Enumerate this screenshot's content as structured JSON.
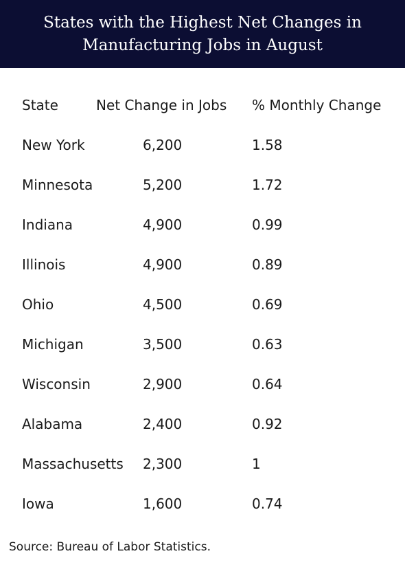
{
  "chart_data": {
    "type": "table",
    "title": "States with the Highest Net Changes in Manufacturing Jobs in August",
    "columns": [
      "State",
      "Net Change in Jobs",
      "% Monthly Change"
    ],
    "rows": [
      [
        "New York",
        "6,200",
        "1.58"
      ],
      [
        "Minnesota",
        "5,200",
        "1.72"
      ],
      [
        "Indiana",
        "4,900",
        "0.99"
      ],
      [
        "Illinois",
        "4,900",
        "0.89"
      ],
      [
        "Ohio",
        "4,500",
        "0.69"
      ],
      [
        "Michigan",
        "3,500",
        "0.63"
      ],
      [
        "Wisconsin",
        "2,900",
        "0.64"
      ],
      [
        "Alabama",
        "2,400",
        "0.92"
      ],
      [
        "Massachusetts",
        "2,300",
        "1"
      ],
      [
        "Iowa",
        "1,600",
        "0.74"
      ]
    ],
    "source": "Source: Bureau of Labor Statistics."
  },
  "colors": {
    "header_bg": "#0c0e33",
    "header_text": "#ffffff",
    "body_text": "#1a1a1a"
  }
}
